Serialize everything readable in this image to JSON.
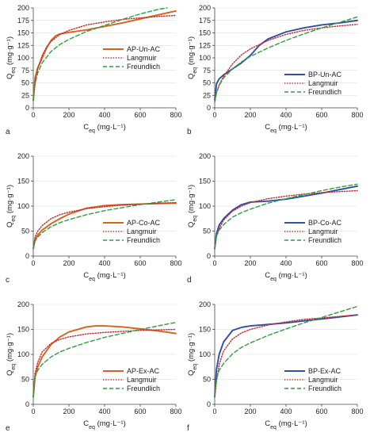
{
  "chart_data": [
    {
      "panel": "a",
      "type": "line",
      "xlabel": "C_eq (mg·L⁻¹)",
      "ylabel": "Q_eq (mg·g⁻¹)",
      "xlim": [
        0,
        800
      ],
      "ylim": [
        0,
        200
      ],
      "xticks": [
        0,
        200,
        400,
        600,
        800
      ],
      "yticks": [
        0,
        25,
        50,
        75,
        100,
        125,
        150,
        175,
        200
      ],
      "legend_position": "middle-right",
      "series": [
        {
          "name": "AP-Un-AC",
          "style": "solid",
          "color": "#d9611c",
          "x": [
            0,
            10,
            25,
            50,
            75,
            100,
            125,
            150,
            200,
            300,
            400,
            500,
            600,
            700,
            800
          ],
          "y": [
            15,
            60,
            80,
            100,
            120,
            135,
            144,
            148,
            151,
            156,
            163,
            170,
            178,
            186,
            194
          ]
        },
        {
          "name": "Langmuir",
          "style": "dotted",
          "color": "#c62828",
          "x": [
            0,
            10,
            25,
            50,
            75,
            100,
            150,
            200,
            300,
            400,
            500,
            600,
            700,
            800
          ],
          "y": [
            15,
            50,
            78,
            105,
            122,
            133,
            147,
            155,
            166,
            172,
            177,
            180,
            183,
            185
          ]
        },
        {
          "name": "Freundlich",
          "style": "dashed",
          "color": "#2e9e3e",
          "x": [
            0,
            10,
            25,
            50,
            100,
            150,
            200,
            300,
            400,
            500,
            600,
            700,
            750
          ],
          "y": [
            15,
            48,
            70,
            90,
            113,
            127,
            137,
            153,
            165,
            177,
            188,
            197,
            200
          ]
        }
      ]
    },
    {
      "panel": "b",
      "type": "line",
      "xlabel": "C_eq (mg·L⁻¹)",
      "ylabel": "Q_eq (mg·g⁻¹)",
      "xlim": [
        0,
        800
      ],
      "ylim": [
        0,
        200
      ],
      "xticks": [
        0,
        200,
        400,
        600,
        800
      ],
      "yticks": [
        0,
        25,
        50,
        75,
        100,
        125,
        150,
        175,
        200
      ],
      "legend_position": "bottom-right",
      "series": [
        {
          "name": "BP-Un-AC",
          "style": "solid",
          "color": "#2f4fa8",
          "x": [
            0,
            10,
            25,
            50,
            100,
            150,
            200,
            250,
            300,
            400,
            500,
            600,
            700,
            800
          ],
          "y": [
            15,
            48,
            58,
            66,
            78,
            90,
            105,
            125,
            138,
            152,
            160,
            166,
            170,
            175
          ]
        },
        {
          "name": "Langmuir",
          "style": "dotted",
          "color": "#c62828",
          "x": [
            0,
            10,
            25,
            50,
            100,
            150,
            200,
            300,
            400,
            500,
            600,
            700,
            800
          ],
          "y": [
            15,
            30,
            46,
            63,
            88,
            106,
            118,
            135,
            147,
            155,
            160,
            164,
            167
          ]
        },
        {
          "name": "Freundlich",
          "style": "dashed",
          "color": "#2e9e3e",
          "x": [
            0,
            10,
            25,
            50,
            100,
            150,
            200,
            300,
            400,
            500,
            600,
            700,
            800
          ],
          "y": [
            10,
            30,
            45,
            60,
            78,
            92,
            103,
            120,
            135,
            148,
            160,
            171,
            182
          ]
        }
      ]
    },
    {
      "panel": "c",
      "type": "line",
      "xlabel": "C_eq (mg·L⁻¹)",
      "ylabel": "Q_eq (mg·g⁻¹)",
      "xlim": [
        0,
        800
      ],
      "ylim": [
        0,
        200
      ],
      "xticks": [
        0,
        200,
        400,
        600,
        800
      ],
      "yticks": [
        0,
        50,
        100,
        150,
        200
      ],
      "legend_position": "bottom-right",
      "series": [
        {
          "name": "AP-Co-AC",
          "style": "solid",
          "color": "#d9611c",
          "x": [
            0,
            10,
            25,
            50,
            100,
            150,
            200,
            300,
            400,
            500,
            600,
            700,
            800
          ],
          "y": [
            15,
            33,
            42,
            52,
            65,
            75,
            84,
            96,
            101,
            103,
            104,
            105,
            106
          ]
        },
        {
          "name": "Langmuir",
          "style": "dotted",
          "color": "#c62828",
          "x": [
            0,
            10,
            25,
            50,
            100,
            150,
            200,
            300,
            400,
            500,
            600,
            700,
            800
          ],
          "y": [
            15,
            38,
            50,
            61,
            75,
            83,
            88,
            95,
            99,
            102,
            104,
            106,
            107
          ]
        },
        {
          "name": "Freundlich",
          "style": "dashed",
          "color": "#2e9e3e",
          "x": [
            0,
            10,
            25,
            50,
            100,
            150,
            200,
            300,
            400,
            500,
            600,
            700,
            800
          ],
          "y": [
            15,
            30,
            38,
            47,
            59,
            67,
            73,
            83,
            91,
            97,
            103,
            108,
            113
          ]
        }
      ]
    },
    {
      "panel": "d",
      "type": "line",
      "xlabel": "C_eq (mg·L⁻¹)",
      "ylabel": "Q_eq (mg·g⁻¹)",
      "xlim": [
        0,
        800
      ],
      "ylim": [
        0,
        200
      ],
      "xticks": [
        0,
        200,
        400,
        600,
        800
      ],
      "yticks": [
        0,
        50,
        100,
        150,
        200
      ],
      "legend_position": "bottom-right",
      "series": [
        {
          "name": "BP-Co-AC",
          "style": "solid",
          "color": "#2f4fa8",
          "x": [
            0,
            10,
            25,
            50,
            100,
            150,
            200,
            300,
            400,
            500,
            600,
            700,
            800
          ],
          "y": [
            15,
            45,
            62,
            75,
            92,
            103,
            108,
            110,
            114,
            120,
            126,
            133,
            140
          ]
        },
        {
          "name": "Langmuir",
          "style": "dotted",
          "color": "#c62828",
          "x": [
            0,
            10,
            25,
            50,
            100,
            150,
            200,
            300,
            400,
            500,
            600,
            700,
            800
          ],
          "y": [
            15,
            40,
            55,
            72,
            90,
            100,
            107,
            115,
            120,
            124,
            127,
            129,
            131
          ]
        },
        {
          "name": "Freundlich",
          "style": "dashed",
          "color": "#2e9e3e",
          "x": [
            0,
            10,
            25,
            50,
            100,
            150,
            200,
            300,
            400,
            500,
            600,
            700,
            800
          ],
          "y": [
            15,
            40,
            52,
            63,
            78,
            87,
            94,
            106,
            115,
            123,
            131,
            138,
            144
          ]
        }
      ]
    },
    {
      "panel": "e",
      "type": "line",
      "xlabel": "C_eq (mg·L⁻¹)",
      "ylabel": "Q_eq (mg·g⁻¹)",
      "xlim": [
        0,
        800
      ],
      "ylim": [
        0,
        200
      ],
      "xticks": [
        0,
        200,
        400,
        600,
        800
      ],
      "yticks": [
        0,
        50,
        100,
        150,
        200
      ],
      "legend_position": "bottom-right",
      "series": [
        {
          "name": "AP-Ex-AC",
          "style": "solid",
          "color": "#d9611c",
          "x": [
            0,
            10,
            25,
            50,
            100,
            150,
            200,
            300,
            350,
            400,
            500,
            600,
            700,
            800
          ],
          "y": [
            15,
            55,
            75,
            95,
            120,
            135,
            145,
            155,
            157,
            157,
            155,
            151,
            147,
            142
          ]
        },
        {
          "name": "Langmuir",
          "style": "dotted",
          "color": "#c62828",
          "x": [
            0,
            10,
            25,
            50,
            100,
            150,
            200,
            300,
            400,
            500,
            600,
            700,
            800
          ],
          "y": [
            15,
            62,
            84,
            105,
            122,
            130,
            135,
            141,
            144,
            146,
            148,
            149,
            150
          ]
        },
        {
          "name": "Freundlich",
          "style": "dashed",
          "color": "#2e9e3e",
          "x": [
            0,
            10,
            25,
            50,
            100,
            150,
            200,
            300,
            400,
            500,
            600,
            700,
            800
          ],
          "y": [
            15,
            55,
            68,
            80,
            95,
            105,
            112,
            124,
            134,
            142,
            150,
            157,
            164
          ]
        }
      ]
    },
    {
      "panel": "f",
      "type": "line",
      "xlabel": "C_eq (mg·L⁻¹)",
      "ylabel": "Q_eq (mg·g⁻¹)",
      "xlim": [
        0,
        800
      ],
      "ylim": [
        0,
        200
      ],
      "xticks": [
        0,
        200,
        400,
        600,
        800
      ],
      "yticks": [
        0,
        50,
        100,
        150,
        200
      ],
      "legend_position": "bottom-right",
      "series": [
        {
          "name": "BP-Ex-AC",
          "style": "solid",
          "color": "#2f4fa8",
          "x": [
            0,
            10,
            25,
            50,
            100,
            150,
            200,
            300,
            400,
            500,
            600,
            700,
            800
          ],
          "y": [
            15,
            70,
            100,
            125,
            148,
            154,
            157,
            160,
            163,
            167,
            171,
            175,
            179
          ]
        },
        {
          "name": "Langmuir",
          "style": "dotted",
          "color": "#c62828",
          "x": [
            0,
            10,
            25,
            50,
            100,
            150,
            200,
            300,
            400,
            500,
            600,
            700,
            800
          ],
          "y": [
            15,
            45,
            80,
            107,
            131,
            143,
            150,
            159,
            165,
            170,
            173,
            176,
            179
          ]
        },
        {
          "name": "Freundlich",
          "style": "dashed",
          "color": "#2e9e3e",
          "x": [
            0,
            10,
            25,
            50,
            100,
            150,
            200,
            300,
            400,
            500,
            600,
            700,
            800
          ],
          "y": [
            15,
            52,
            68,
            82,
            101,
            114,
            123,
            138,
            151,
            163,
            174,
            185,
            196
          ]
        }
      ]
    }
  ]
}
